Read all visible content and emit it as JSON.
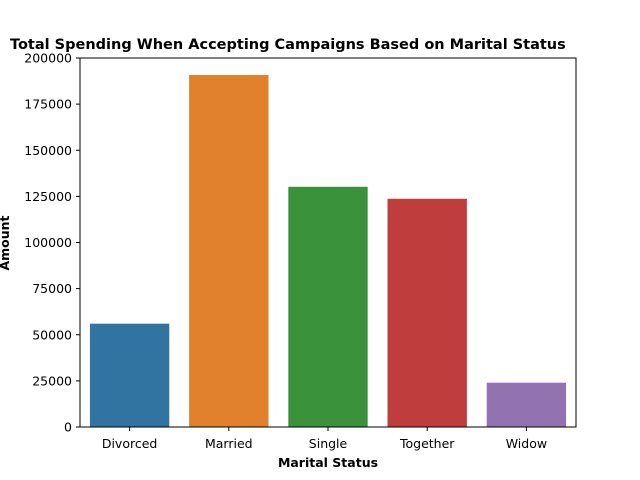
{
  "chart_data": {
    "type": "bar",
    "title": "Total Spending When Accepting Campaigns Based on Marital Status",
    "xlabel": "Marital Status",
    "ylabel": "Amount",
    "categories": [
      "Divorced",
      "Married",
      "Single",
      "Together",
      "Widow"
    ],
    "values": [
      56000,
      190800,
      130200,
      123700,
      24000
    ],
    "colors": [
      "#3274a1",
      "#e1812c",
      "#3a923a",
      "#c03d3e",
      "#9372b2"
    ],
    "ylim": [
      0,
      200000
    ],
    "yticks": [
      0,
      25000,
      50000,
      75000,
      100000,
      125000,
      150000,
      175000,
      200000
    ],
    "ytick_labels": [
      "0",
      "25000",
      "50000",
      "75000",
      "100000",
      "125000",
      "150000",
      "175000",
      "200000"
    ],
    "grid": false,
    "legend": "none"
  }
}
